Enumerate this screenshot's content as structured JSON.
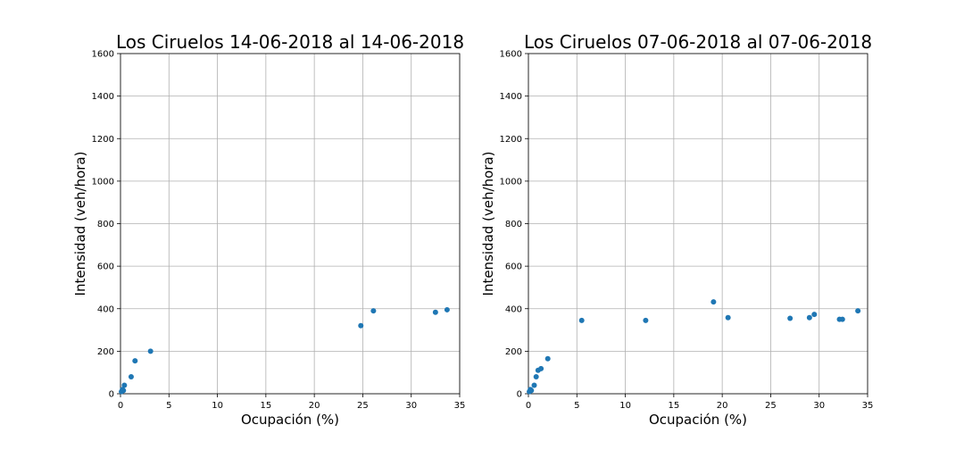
{
  "chart_data": [
    {
      "type": "scatter",
      "title": "Los Ciruelos 14-06-2018 al 14-06-2018",
      "xlabel": "Ocupación (%)",
      "ylabel": "Intensidad (veh/hora)",
      "xlim": [
        0,
        35
      ],
      "ylim": [
        0,
        1600
      ],
      "xticks": [
        0,
        5,
        10,
        15,
        20,
        25,
        30,
        35
      ],
      "yticks": [
        0,
        200,
        400,
        600,
        800,
        1000,
        1200,
        1400,
        1600
      ],
      "grid": true,
      "marker_color": "#1f77b4",
      "points": [
        {
          "x": 0.1,
          "y": 10
        },
        {
          "x": 0.2,
          "y": 20
        },
        {
          "x": 0.3,
          "y": 15
        },
        {
          "x": 0.4,
          "y": 40
        },
        {
          "x": 1.1,
          "y": 80
        },
        {
          "x": 1.5,
          "y": 155
        },
        {
          "x": 3.1,
          "y": 200
        },
        {
          "x": 24.8,
          "y": 320
        },
        {
          "x": 26.1,
          "y": 390
        },
        {
          "x": 32.5,
          "y": 383
        },
        {
          "x": 33.7,
          "y": 395
        }
      ]
    },
    {
      "type": "scatter",
      "title": "Los Ciruelos 07-06-2018 al 07-06-2018",
      "xlabel": "Ocupación (%)",
      "ylabel": "Intensidad (veh/hora)",
      "xlim": [
        0,
        35
      ],
      "ylim": [
        0,
        1600
      ],
      "xticks": [
        0,
        5,
        10,
        15,
        20,
        25,
        30,
        35
      ],
      "yticks": [
        0,
        200,
        400,
        600,
        800,
        1000,
        1200,
        1400,
        1600
      ],
      "grid": true,
      "marker_color": "#1f77b4",
      "points": [
        {
          "x": 0.1,
          "y": 10
        },
        {
          "x": 0.2,
          "y": 20
        },
        {
          "x": 0.3,
          "y": 15
        },
        {
          "x": 0.6,
          "y": 40
        },
        {
          "x": 0.8,
          "y": 80
        },
        {
          "x": 1.0,
          "y": 110
        },
        {
          "x": 1.3,
          "y": 118
        },
        {
          "x": 2.0,
          "y": 165
        },
        {
          "x": 5.5,
          "y": 345
        },
        {
          "x": 12.1,
          "y": 345
        },
        {
          "x": 19.1,
          "y": 432
        },
        {
          "x": 20.6,
          "y": 358
        },
        {
          "x": 27.0,
          "y": 355
        },
        {
          "x": 29.0,
          "y": 358
        },
        {
          "x": 29.5,
          "y": 373
        },
        {
          "x": 32.1,
          "y": 350
        },
        {
          "x": 32.4,
          "y": 350
        },
        {
          "x": 34.0,
          "y": 390
        }
      ]
    }
  ]
}
